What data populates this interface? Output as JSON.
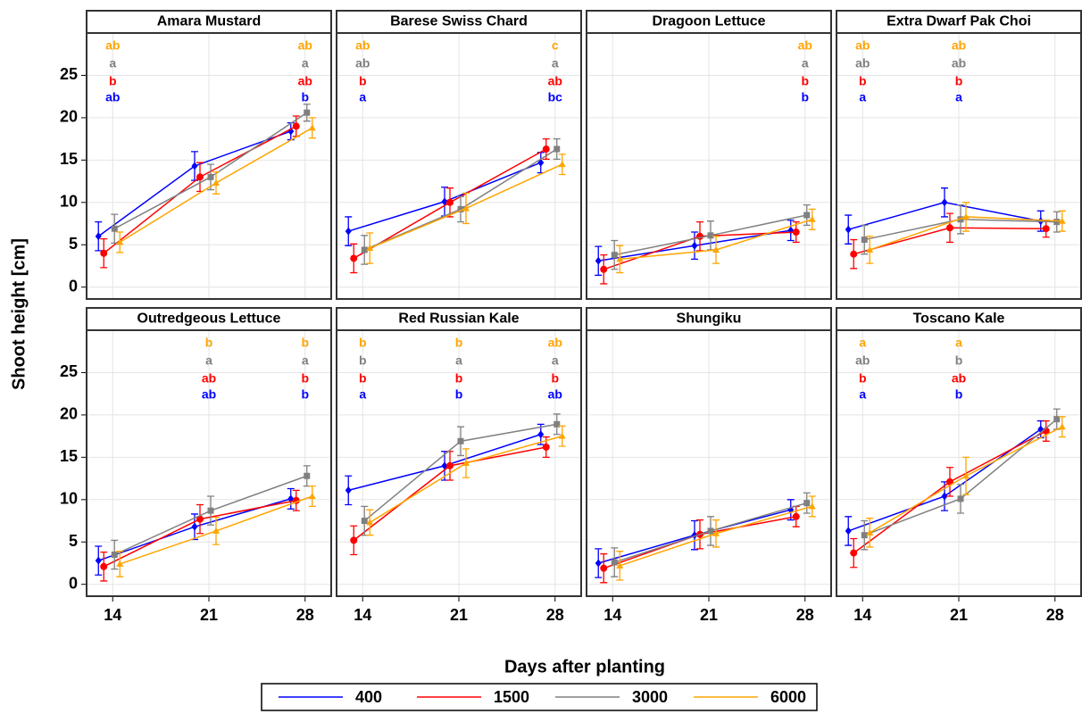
{
  "chart_data": {
    "type": "line",
    "y_label": "Shoot height [cm]",
    "x_label": "Days after planting",
    "x": [
      14,
      21,
      28
    ],
    "xlim": [
      12.1,
      29.9
    ],
    "xticks": [
      14,
      21,
      28
    ],
    "ylim": [
      -1.4,
      30
    ],
    "yticks": [
      0,
      5,
      10,
      15,
      20,
      25
    ],
    "grid": true,
    "legend": "bottom",
    "series": [
      {
        "name": "400",
        "color": "#0000ff",
        "marker": "diamond"
      },
      {
        "name": "1500",
        "color": "#ff0000",
        "marker": "circle"
      },
      {
        "name": "3000",
        "color": "#808080",
        "marker": "square"
      },
      {
        "name": "6000",
        "color": "#ffa500",
        "marker": "triangle"
      }
    ],
    "panels": [
      {
        "title": "Amara Mustard",
        "series": [
          {
            "values": [
              6.0,
              14.3,
              18.4
            ],
            "errors": [
              1.7,
              1.7,
              1.0
            ],
            "letters": [
              "ab",
              null,
              "b"
            ]
          },
          {
            "values": [
              4.0,
              13.0,
              19.0
            ],
            "errors": [
              1.7,
              1.7,
              1.2
            ],
            "letters": [
              "b",
              null,
              "ab"
            ]
          },
          {
            "values": [
              6.9,
              13.0,
              20.6
            ],
            "errors": [
              1.7,
              1.5,
              1.0
            ],
            "letters": [
              "a",
              null,
              "a"
            ]
          },
          {
            "values": [
              5.3,
              12.3,
              18.8
            ],
            "errors": [
              1.2,
              1.3,
              1.2
            ],
            "letters": [
              "ab",
              null,
              "ab"
            ]
          }
        ]
      },
      {
        "title": "Barese Swiss Chard",
        "series": [
          {
            "values": [
              6.6,
              10.1,
              14.7
            ],
            "errors": [
              1.7,
              1.7,
              1.2
            ],
            "letters": [
              "a",
              null,
              "bc"
            ]
          },
          {
            "values": [
              3.4,
              10.0,
              16.3
            ],
            "errors": [
              1.7,
              1.7,
              1.2
            ],
            "letters": [
              "b",
              null,
              "ab"
            ]
          },
          {
            "values": [
              4.4,
              9.2,
              16.3
            ],
            "errors": [
              1.7,
              1.5,
              1.2
            ],
            "letters": [
              "ab",
              null,
              "a"
            ]
          },
          {
            "values": [
              4.6,
              9.3,
              14.5
            ],
            "errors": [
              1.8,
              1.8,
              1.2
            ],
            "letters": [
              "ab",
              null,
              "c"
            ]
          }
        ]
      },
      {
        "title": "Dragoon Lettuce",
        "series": [
          {
            "values": [
              3.1,
              4.9,
              6.7
            ],
            "errors": [
              1.7,
              1.6,
              1.2
            ],
            "letters": [
              null,
              null,
              "b"
            ]
          },
          {
            "values": [
              2.1,
              6.0,
              6.5
            ],
            "errors": [
              1.7,
              1.7,
              1.2
            ],
            "letters": [
              null,
              null,
              "b"
            ]
          },
          {
            "values": [
              3.8,
              6.1,
              8.5
            ],
            "errors": [
              1.7,
              1.7,
              1.2
            ],
            "letters": [
              null,
              null,
              "a"
            ]
          },
          {
            "values": [
              3.3,
              4.4,
              8.0
            ],
            "errors": [
              1.6,
              1.6,
              1.2
            ],
            "letters": [
              null,
              null,
              "ab"
            ]
          }
        ]
      },
      {
        "title": "Extra Dwarf Pak Choi",
        "series": [
          {
            "values": [
              6.8,
              10.0,
              7.8
            ],
            "errors": [
              1.7,
              1.7,
              1.2
            ],
            "letters": [
              "a",
              "a",
              null
            ]
          },
          {
            "values": [
              3.9,
              7.0,
              6.9
            ],
            "errors": [
              1.7,
              1.7,
              1.0
            ],
            "letters": [
              "b",
              "b",
              null
            ]
          },
          {
            "values": [
              5.6,
              8.0,
              7.7
            ],
            "errors": [
              1.7,
              1.7,
              1.2
            ],
            "letters": [
              "ab",
              "ab",
              null
            ]
          },
          {
            "values": [
              4.4,
              8.3,
              7.8
            ],
            "errors": [
              1.6,
              1.7,
              1.2
            ],
            "letters": [
              "ab",
              "ab",
              null
            ]
          }
        ]
      },
      {
        "title": "Outredgeous Lettuce",
        "series": [
          {
            "values": [
              2.8,
              6.8,
              10.1
            ],
            "errors": [
              1.7,
              1.5,
              1.2
            ],
            "letters": [
              null,
              "ab",
              "b"
            ]
          },
          {
            "values": [
              2.1,
              7.7,
              9.9
            ],
            "errors": [
              1.7,
              1.7,
              1.2
            ],
            "letters": [
              null,
              "ab",
              "b"
            ]
          },
          {
            "values": [
              3.5,
              8.7,
              12.8
            ],
            "errors": [
              1.7,
              1.7,
              1.2
            ],
            "letters": [
              null,
              "a",
              "a"
            ]
          },
          {
            "values": [
              2.4,
              6.3,
              10.4
            ],
            "errors": [
              1.5,
              1.6,
              1.2
            ],
            "letters": [
              null,
              "b",
              "b"
            ]
          }
        ]
      },
      {
        "title": "Red Russian Kale",
        "series": [
          {
            "values": [
              11.1,
              14.0,
              17.7
            ],
            "errors": [
              1.7,
              1.7,
              1.2
            ],
            "letters": [
              "a",
              "b",
              "ab"
            ]
          },
          {
            "values": [
              5.2,
              14.0,
              16.2
            ],
            "errors": [
              1.7,
              1.7,
              1.2
            ],
            "letters": [
              "b",
              "b",
              "b"
            ]
          },
          {
            "values": [
              7.5,
              16.9,
              18.9
            ],
            "errors": [
              1.7,
              1.7,
              1.2
            ],
            "letters": [
              "b",
              "a",
              "a"
            ]
          },
          {
            "values": [
              7.3,
              14.3,
              17.5
            ],
            "errors": [
              1.5,
              1.7,
              1.2
            ],
            "letters": [
              "b",
              "b",
              "ab"
            ]
          }
        ]
      },
      {
        "title": "Shungiku",
        "series": [
          {
            "values": [
              2.5,
              5.8,
              8.8
            ],
            "errors": [
              1.7,
              1.7,
              1.2
            ],
            "letters": [
              null,
              null,
              null
            ]
          },
          {
            "values": [
              1.9,
              5.9,
              8.0
            ],
            "errors": [
              1.7,
              1.7,
              1.2
            ],
            "letters": [
              null,
              null,
              null
            ]
          },
          {
            "values": [
              2.6,
              6.3,
              9.6
            ],
            "errors": [
              1.7,
              1.7,
              1.2
            ],
            "letters": [
              null,
              null,
              null
            ]
          },
          {
            "values": [
              2.2,
              6.0,
              9.2
            ],
            "errors": [
              1.7,
              1.6,
              1.2
            ],
            "letters": [
              null,
              null,
              null
            ]
          }
        ]
      },
      {
        "title": "Toscano Kale",
        "series": [
          {
            "values": [
              6.3,
              10.4,
              18.3
            ],
            "errors": [
              1.7,
              1.7,
              1.0
            ],
            "letters": [
              "a",
              "b",
              null
            ]
          },
          {
            "values": [
              3.7,
              12.1,
              18.1
            ],
            "errors": [
              1.7,
              1.7,
              1.2
            ],
            "letters": [
              "b",
              "ab",
              null
            ]
          },
          {
            "values": [
              5.8,
              10.1,
              19.5
            ],
            "errors": [
              1.7,
              1.7,
              1.2
            ],
            "letters": [
              "ab",
              "b",
              null
            ]
          },
          {
            "values": [
              6.1,
              12.8,
              18.6
            ],
            "errors": [
              1.7,
              2.2,
              1.2
            ],
            "letters": [
              "a",
              "a",
              null
            ]
          }
        ]
      }
    ]
  }
}
